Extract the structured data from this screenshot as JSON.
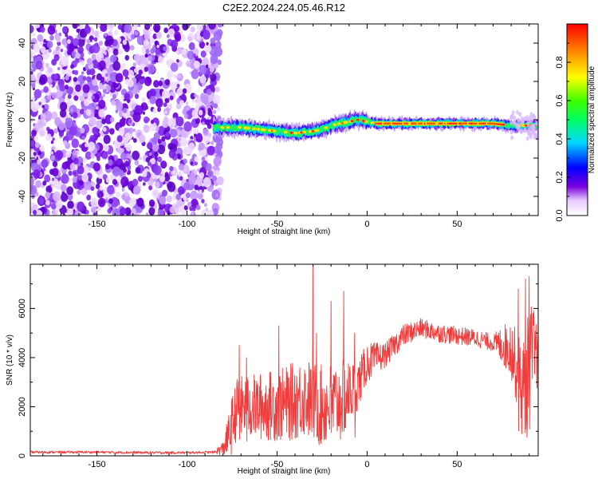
{
  "title": "C2E2.2024.224.05.46.R12",
  "chart_data": [
    {
      "type": "heatmap",
      "xlabel": "Height of straight line (km)",
      "ylabel": "Frequency (Hz)",
      "xlim": [
        -187,
        95
      ],
      "ylim": [
        -50,
        50
      ],
      "xticks": [
        -150,
        -100,
        -50,
        0,
        50
      ],
      "yticks": [
        -40,
        -20,
        0,
        20,
        40
      ],
      "colorbar": {
        "label": "Normalized spectral amplitude",
        "range": [
          0,
          1
        ],
        "ticks": [
          0.0,
          0.2,
          0.4,
          0.6,
          0.8
        ]
      },
      "noise_region_x": [
        -187,
        -85
      ],
      "band_center": [
        [
          -85,
          -4
        ],
        [
          -80,
          -4
        ],
        [
          -70,
          -4
        ],
        [
          -60,
          -5
        ],
        [
          -50,
          -6
        ],
        [
          -40,
          -7
        ],
        [
          -30,
          -6
        ],
        [
          -25,
          -5
        ],
        [
          -20,
          -3
        ],
        [
          -10,
          -1
        ],
        [
          -5,
          0
        ],
        [
          0,
          -1
        ],
        [
          5,
          -2
        ],
        [
          10,
          -2
        ],
        [
          20,
          -2
        ],
        [
          40,
          -2
        ],
        [
          60,
          -2
        ],
        [
          70,
          -2
        ],
        [
          80,
          -3
        ],
        [
          90,
          -3
        ],
        [
          95,
          -3
        ]
      ]
    },
    {
      "type": "line",
      "xlabel": "Height of straight line (km)",
      "ylabel": "SNR (10 * v/v)",
      "xlim": [
        -187,
        95
      ],
      "ylim": [
        0,
        7800
      ],
      "xticks": [
        -150,
        -100,
        -50,
        0,
        50
      ],
      "yticks": [
        0,
        2000,
        4000,
        6000
      ],
      "color": "#f03c3c",
      "envelope": [
        [
          -187,
          150
        ],
        [
          -150,
          150
        ],
        [
          -120,
          130
        ],
        [
          -100,
          130
        ],
        [
          -85,
          150
        ],
        [
          -80,
          300
        ],
        [
          -76,
          1000
        ],
        [
          -72,
          2000
        ],
        [
          -60,
          2000
        ],
        [
          -45,
          2100
        ],
        [
          -35,
          2400
        ],
        [
          -25,
          2000
        ],
        [
          -15,
          2200
        ],
        [
          -5,
          2900
        ],
        [
          0,
          3800
        ],
        [
          10,
          4100
        ],
        [
          20,
          4900
        ],
        [
          30,
          5200
        ],
        [
          40,
          5000
        ],
        [
          50,
          4900
        ],
        [
          60,
          4800
        ],
        [
          70,
          4600
        ],
        [
          80,
          4400
        ],
        [
          85,
          3000
        ],
        [
          88,
          2500
        ],
        [
          90,
          4000
        ],
        [
          92,
          4200
        ],
        [
          95,
          4000
        ]
      ],
      "amplitude": [
        [
          -187,
          50
        ],
        [
          -85,
          50
        ],
        [
          -80,
          300
        ],
        [
          -75,
          1200
        ],
        [
          -40,
          1600
        ],
        [
          -25,
          1700
        ],
        [
          -15,
          1700
        ],
        [
          -5,
          1000
        ],
        [
          10,
          500
        ],
        [
          30,
          400
        ],
        [
          70,
          350
        ],
        [
          83,
          1500
        ],
        [
          88,
          2500
        ],
        [
          92,
          2000
        ],
        [
          95,
          1200
        ]
      ],
      "spikes": [
        [
          -71,
          4500
        ],
        [
          -67,
          4000
        ],
        [
          -49,
          5300
        ],
        [
          -30,
          7700
        ],
        [
          -28,
          5000
        ],
        [
          -20,
          6300
        ],
        [
          -13,
          6700
        ],
        [
          -7,
          5000
        ],
        [
          84,
          6800
        ],
        [
          88,
          7200
        ],
        [
          90,
          7300
        ]
      ]
    }
  ]
}
